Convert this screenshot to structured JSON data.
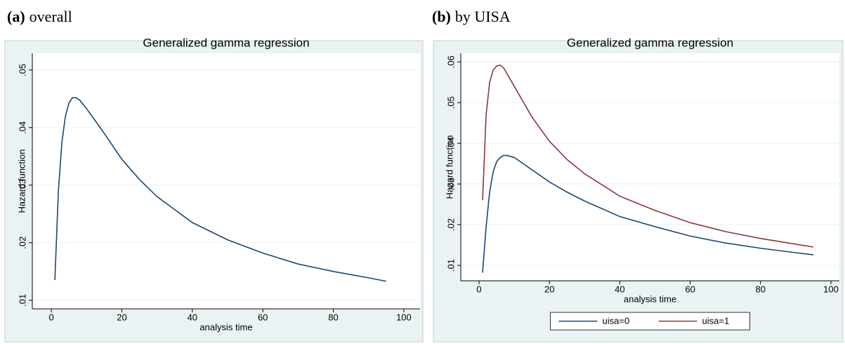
{
  "chart_data": [
    {
      "type": "line",
      "panel_label": "(a)",
      "panel_caption": "overall",
      "title": "Generalized gamma regression",
      "x_label": "analysis time",
      "y_label": "Hazard function",
      "x": [
        1,
        2,
        3,
        4,
        5,
        6,
        7,
        8,
        10,
        15,
        20,
        25,
        30,
        40,
        50,
        60,
        70,
        80,
        90,
        95
      ],
      "values": [
        0.0135,
        0.029,
        0.0375,
        0.042,
        0.0443,
        0.0452,
        0.0452,
        0.0448,
        0.0433,
        0.039,
        0.0345,
        0.031,
        0.028,
        0.0235,
        0.0205,
        0.0182,
        0.0163,
        0.015,
        0.0139,
        0.0133
      ],
      "color": "#1a476f",
      "xlim": [
        -5.4,
        104.6
      ],
      "xticks": [
        0,
        20,
        40,
        60,
        80,
        100
      ],
      "ylim": [
        0.0085,
        0.0529
      ],
      "yticks": [
        {
          "value": 0.01,
          "label": ".01"
        },
        {
          "value": 0.02,
          "label": ".02"
        },
        {
          "value": 0.03,
          "label": ".03"
        },
        {
          "value": 0.04,
          "label": ".04"
        },
        {
          "value": 0.05,
          "label": ".05"
        }
      ],
      "grid": true
    },
    {
      "type": "line",
      "panel_label": "(b)",
      "panel_caption": "by UISA",
      "title": "Generalized gamma regression",
      "x_label": "analysis time",
      "y_label": "Hazard function",
      "x": [
        1,
        2,
        3,
        4,
        5,
        6,
        7,
        8,
        10,
        15,
        20,
        25,
        30,
        40,
        50,
        60,
        70,
        80,
        90,
        95
      ],
      "series": [
        {
          "name": "uisa=0",
          "color": "#1a476f",
          "values": [
            0.0082,
            0.0195,
            0.028,
            0.033,
            0.0355,
            0.0365,
            0.037,
            0.037,
            0.0365,
            0.0335,
            0.0305,
            0.028,
            0.0258,
            0.022,
            0.0195,
            0.0172,
            0.0155,
            0.0142,
            0.0131,
            0.0126
          ]
        },
        {
          "name": "uisa=1",
          "color": "#90353b",
          "values": [
            0.026,
            0.047,
            0.055,
            0.058,
            0.059,
            0.0592,
            0.0585,
            0.057,
            0.054,
            0.0465,
            0.0405,
            0.036,
            0.0325,
            0.027,
            0.0235,
            0.0205,
            0.0183,
            0.0166,
            0.0152,
            0.0145
          ]
        }
      ],
      "xlim": [
        -5.2,
        102.4
      ],
      "xticks": [
        0,
        20,
        40,
        60,
        80,
        100
      ],
      "ylim": [
        0.0062,
        0.0621
      ],
      "yticks": [
        {
          "value": 0.01,
          "label": ".01"
        },
        {
          "value": 0.02,
          "label": ".02"
        },
        {
          "value": 0.03,
          "label": ".03"
        },
        {
          "value": 0.04,
          "label": ".04"
        },
        {
          "value": 0.05,
          "label": ".05"
        },
        {
          "value": 0.06,
          "label": ".06"
        }
      ],
      "grid": true,
      "legend": "bottom"
    }
  ]
}
